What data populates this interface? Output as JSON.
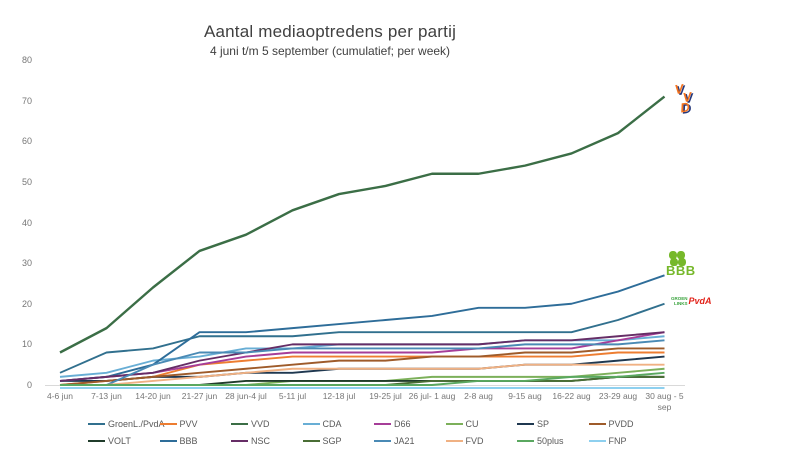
{
  "chart_data": {
    "type": "line",
    "title": "Aantal mediaoptredens per partij",
    "subtitle": "4 juni t/m 5 september (cumulatief; per week)",
    "categories": [
      "4-6 jun",
      "7-13 jun",
      "14-20 jun",
      "21-27 jun",
      "28 jun-4 jul",
      "5-11 jul",
      "12-18 jul",
      "19-25 jul",
      "26 jul- 1 aug",
      "2-8 aug",
      "9-15 aug",
      "16-22 aug",
      "23-29 aug",
      "30 aug - 5\nsep"
    ],
    "ylim": [
      0,
      80
    ],
    "yticks": [
      0,
      10,
      20,
      30,
      40,
      50,
      60,
      70,
      80
    ],
    "grid": false,
    "legend_position": "bottom",
    "legend_rows": 2,
    "series": [
      {
        "name": "GroenL./PvdA",
        "color": "#31708e",
        "values": [
          3,
          8,
          9,
          12,
          12,
          12,
          13,
          13,
          13,
          13,
          13,
          13,
          16,
          20
        ]
      },
      {
        "name": "PVV",
        "color": "#ed7d31",
        "values": [
          0,
          1,
          2,
          5,
          6,
          7,
          7,
          7,
          7,
          7,
          7,
          7,
          8,
          8
        ]
      },
      {
        "name": "VVD",
        "color": "#3b6e46",
        "values": [
          8,
          14,
          24,
          33,
          37,
          43,
          47,
          49,
          52,
          52,
          54,
          57,
          62,
          71
        ]
      },
      {
        "name": "CDA",
        "color": "#68aed5",
        "values": [
          2,
          3,
          6,
          7,
          9,
          9,
          10,
          10,
          10,
          10,
          11,
          11,
          11,
          12
        ]
      },
      {
        "name": "D66",
        "color": "#a63d98",
        "values": [
          1,
          2,
          3,
          5,
          7,
          8,
          8,
          8,
          8,
          9,
          9,
          9,
          11,
          13
        ]
      },
      {
        "name": "CU",
        "color": "#7cb05a",
        "values": [
          0,
          0,
          0,
          0,
          0,
          1,
          1,
          1,
          2,
          2,
          2,
          2,
          3,
          4
        ]
      },
      {
        "name": "SP",
        "color": "#1f3850",
        "values": [
          1,
          1,
          2,
          2,
          3,
          3,
          4,
          4,
          4,
          4,
          5,
          5,
          6,
          7
        ]
      },
      {
        "name": "PVDD",
        "color": "#9e5b2a",
        "values": [
          0,
          1,
          2,
          3,
          4,
          5,
          6,
          6,
          7,
          7,
          8,
          8,
          9,
          9
        ]
      },
      {
        "name": "VOLT",
        "color": "#203c2b",
        "values": [
          0,
          0,
          0,
          0,
          1,
          1,
          1,
          1,
          1,
          1,
          1,
          1,
          2,
          2
        ]
      },
      {
        "name": "BBB",
        "color": "#2e6d99",
        "values": [
          1,
          2,
          5,
          13,
          13,
          14,
          15,
          16,
          17,
          19,
          19,
          20,
          23,
          27
        ]
      },
      {
        "name": "NSC",
        "color": "#662d66",
        "values": [
          1,
          2,
          3,
          6,
          8,
          10,
          10,
          10,
          10,
          10,
          11,
          11,
          12,
          13
        ]
      },
      {
        "name": "SGP",
        "color": "#4a6e35",
        "values": [
          0,
          0,
          0,
          0,
          0,
          0,
          0,
          0,
          1,
          1,
          1,
          1,
          2,
          2
        ]
      },
      {
        "name": "JA21",
        "color": "#4a8ab5",
        "values": [
          0,
          0,
          5,
          8,
          8,
          9,
          9,
          9,
          9,
          9,
          10,
          10,
          10,
          11
        ]
      },
      {
        "name": "FVD",
        "color": "#f0b183",
        "values": [
          0,
          0,
          1,
          2,
          3,
          4,
          4,
          4,
          4,
          4,
          5,
          5,
          5,
          5
        ]
      },
      {
        "name": "50plus",
        "color": "#5aa860",
        "values": [
          0,
          0,
          0,
          0,
          0,
          0,
          0,
          0,
          0,
          1,
          1,
          2,
          2,
          3
        ]
      },
      {
        "name": "FNP",
        "color": "#8ed0ef",
        "values": [
          0,
          0,
          0,
          0,
          0,
          0,
          0,
          0,
          0,
          0,
          0,
          0,
          0,
          0
        ]
      }
    ]
  },
  "logos": {
    "vvd": {
      "l1": "V",
      "l2": "V",
      "l3": "D"
    },
    "bbb": {
      "text": "BBB"
    },
    "glpvda": {
      "line1": "GROEN",
      "line2": "LINKS",
      "pvda": "PvdA"
    }
  }
}
